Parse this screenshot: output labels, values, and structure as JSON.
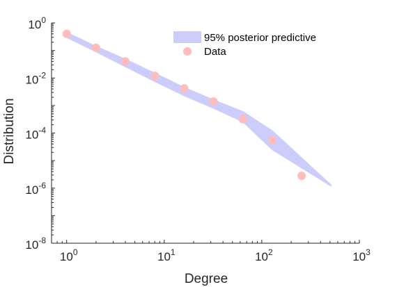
{
  "chart_data": {
    "type": "scatter",
    "xscale": "log",
    "yscale": "log",
    "xlim": [
      0.7,
      1000
    ],
    "ylim": [
      1e-08,
      1
    ],
    "xlabel": "Degree",
    "ylabel": "Distribution",
    "x_ticks": [
      {
        "base": "10",
        "exp": "0",
        "value": 1
      },
      {
        "base": "10",
        "exp": "1",
        "value": 10
      },
      {
        "base": "10",
        "exp": "2",
        "value": 100
      },
      {
        "base": "10",
        "exp": "3",
        "value": 1000
      }
    ],
    "y_ticks": [
      {
        "base": "10",
        "exp": "0",
        "value": 1
      },
      {
        "base": "10",
        "exp": "-2",
        "value": 0.01
      },
      {
        "base": "10",
        "exp": "-4",
        "value": 0.0001
      },
      {
        "base": "10",
        "exp": "-6",
        "value": 1e-06
      },
      {
        "base": "10",
        "exp": "-8",
        "value": 1e-08
      }
    ],
    "grid": false,
    "legend_position": "top-right",
    "series": [
      {
        "name": "95% posterior predictive",
        "kind": "band",
        "color": "#cccdfb",
        "x": [
          1,
          2,
          4,
          8,
          16,
          32,
          64,
          128,
          128,
          512
        ],
        "upper": [
          0.45,
          0.14,
          0.048,
          0.015,
          0.0045,
          0.0016,
          0.0006,
          0.00012,
          0.00012,
          1.3e-06
        ],
        "lower": [
          0.3,
          0.09,
          0.026,
          0.0075,
          0.0023,
          0.0008,
          0.00026,
          2.5e-05,
          2.5e-05,
          1.2e-06
        ]
      },
      {
        "name": "Data",
        "kind": "points",
        "color": "#ffbcbc",
        "x": [
          1,
          2,
          4,
          8,
          16,
          32,
          64,
          128,
          256
        ],
        "y": [
          0.4,
          0.125,
          0.04,
          0.012,
          0.0042,
          0.0014,
          0.00032,
          5.5e-05,
          2.8e-06
        ]
      }
    ]
  }
}
